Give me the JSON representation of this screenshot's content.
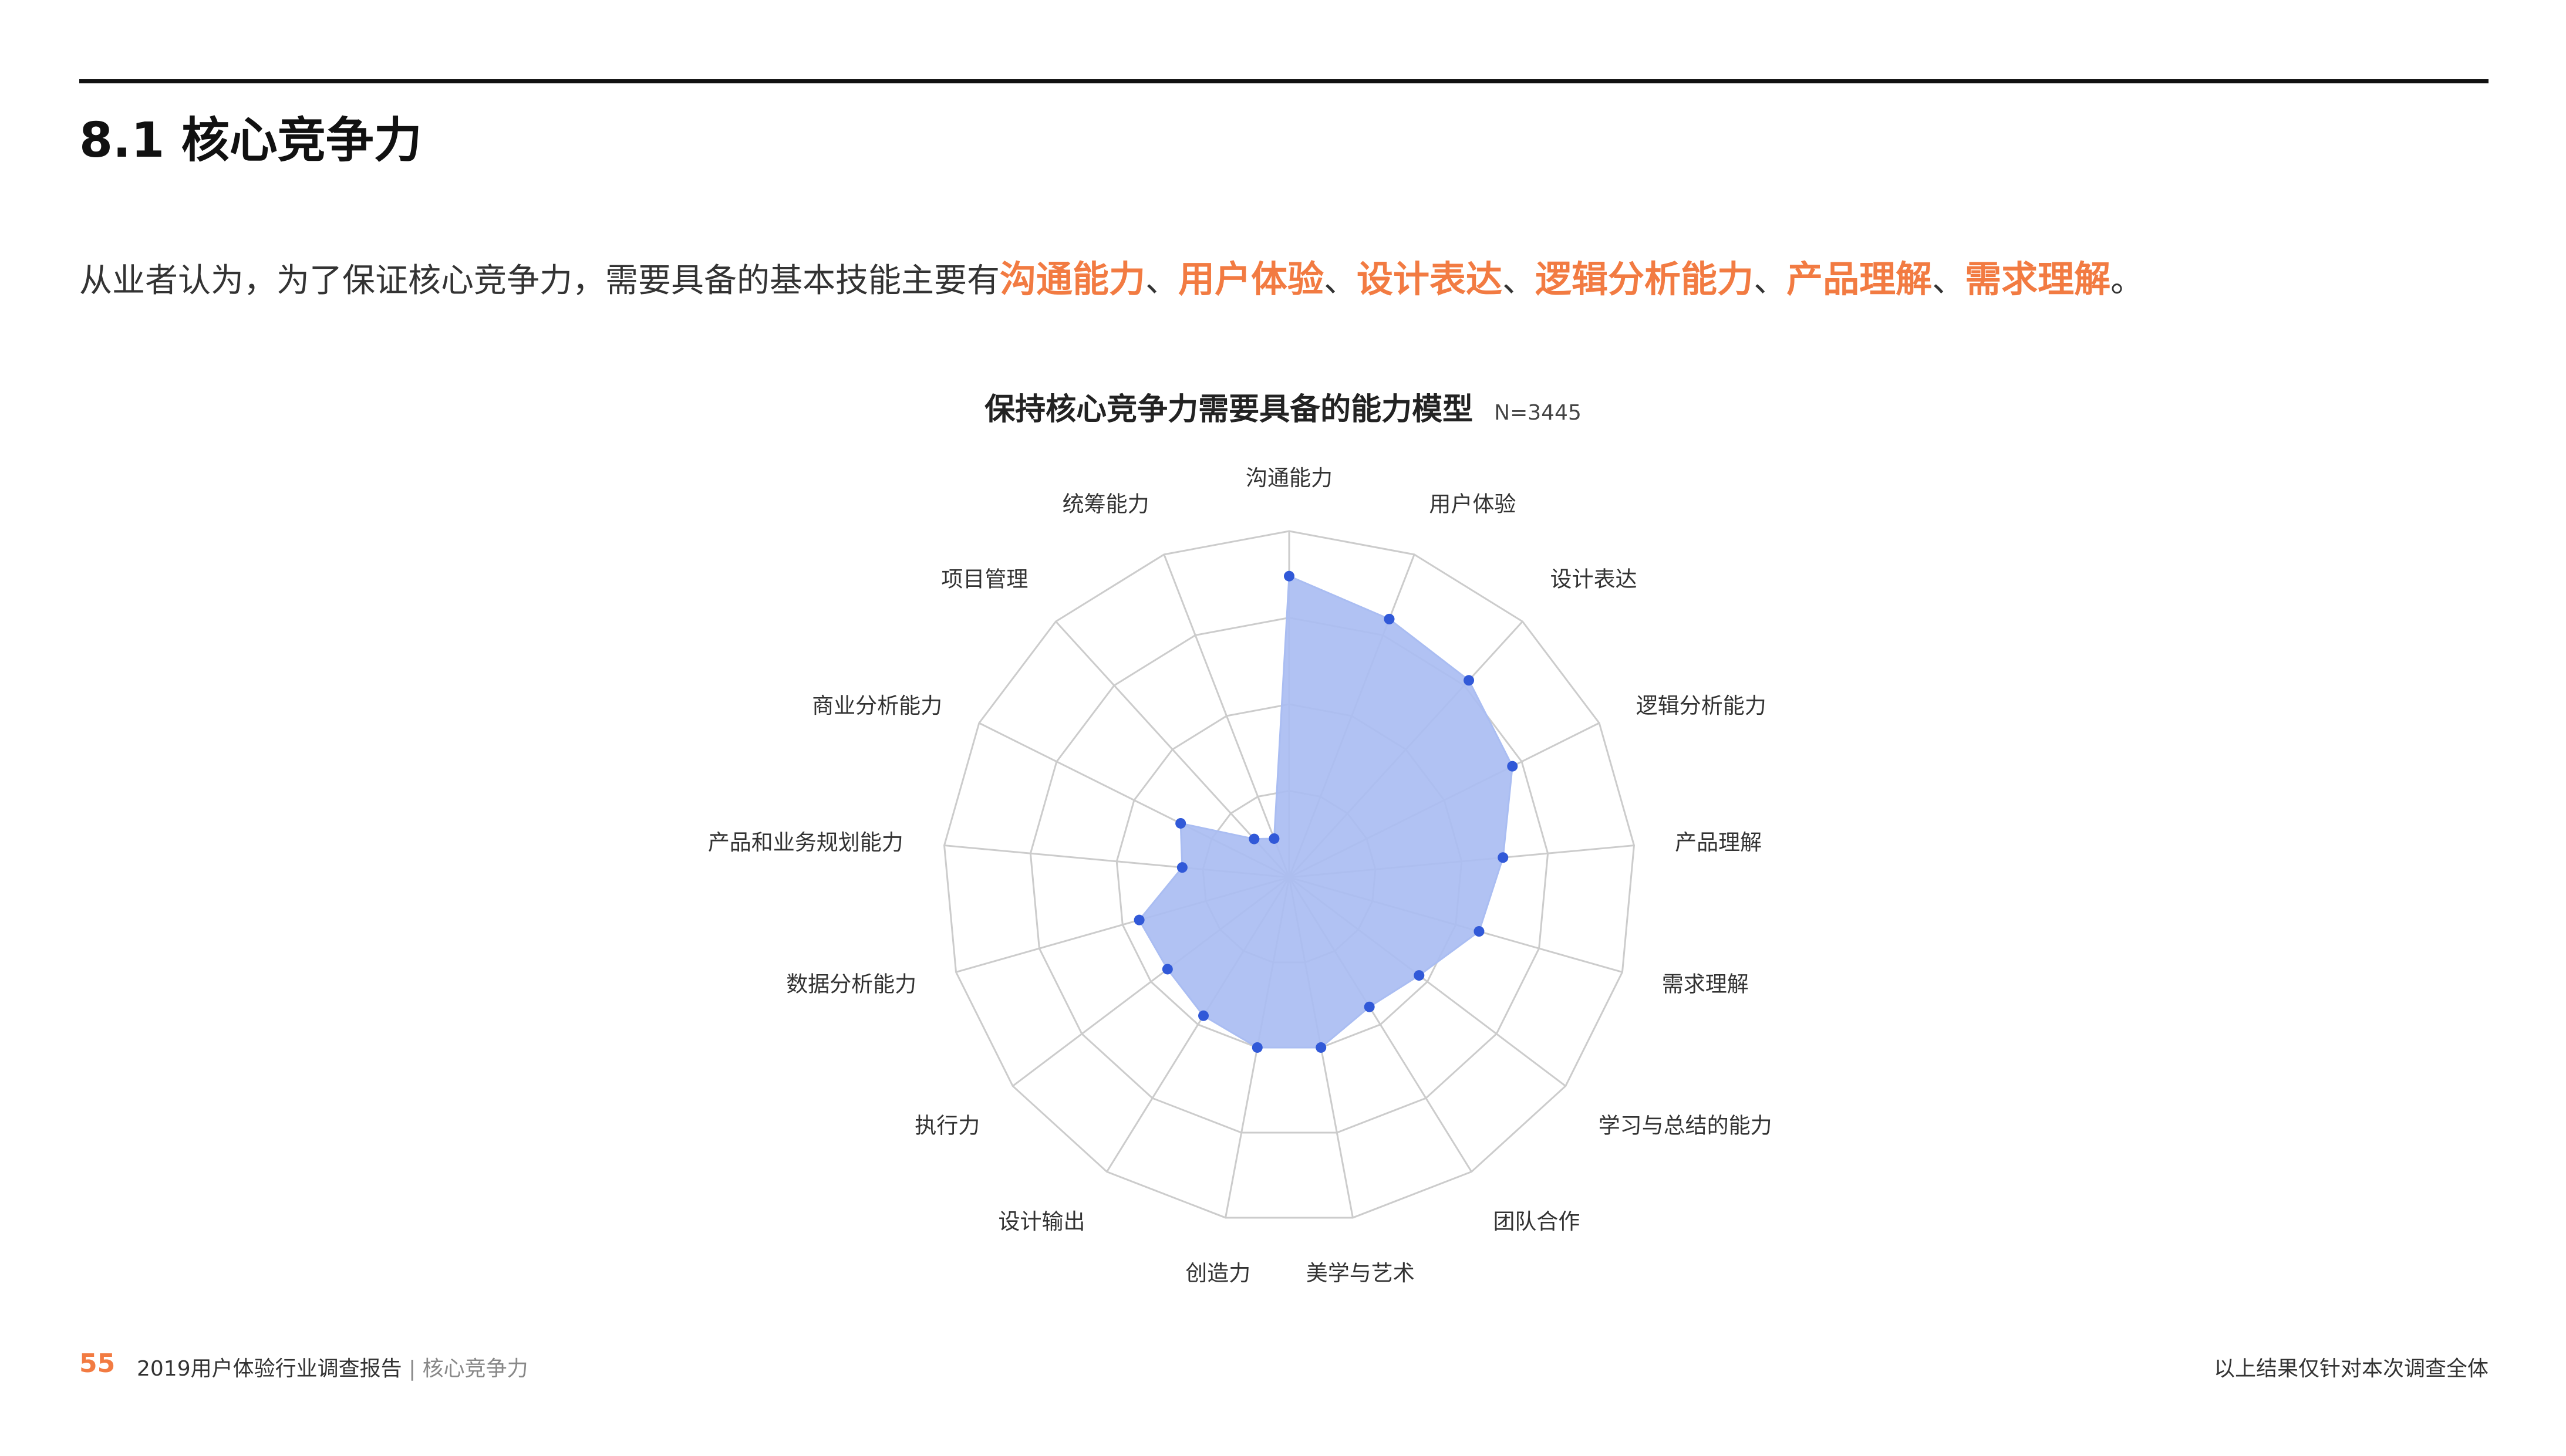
{
  "header": {
    "section_title": "8.1 核心竞争力"
  },
  "summary": {
    "intro": "从业者认为，为了保证核心竞争力，需要具备的基本技能主要有",
    "highlights": [
      "沟通能力",
      "用户体验",
      "设计表达",
      "逻辑分析能力",
      "产品理解",
      "需求理解"
    ],
    "separator": "、",
    "ending": "。"
  },
  "chart_title": "保持核心竞争力需要具备的能力模型",
  "sample_size": "N=3445",
  "colors": {
    "accent": "#f27b42",
    "fill": "#aabdf2",
    "point": "#3159d8",
    "grid": "#cccccc"
  },
  "chart_data": {
    "type": "radar",
    "title": "保持核心竞争力需要具备的能力模型",
    "categories": [
      "沟通能力",
      "用户体验",
      "设计表达",
      "逻辑分析能力",
      "产品理解",
      "需求理解",
      "学习与总结的能力",
      "团队合作",
      "美学与艺术",
      "创造力",
      "设计输出",
      "执行力",
      "数据分析能力",
      "产品和业务规划能力",
      "商业分析能力",
      "项目管理",
      "统筹能力"
    ],
    "series": [
      {
        "values": [
          0.87,
          0.8,
          0.77,
          0.72,
          0.62,
          0.57,
          0.47,
          0.44,
          0.5,
          0.5,
          0.47,
          0.44,
          0.45,
          0.31,
          0.35,
          0.15,
          0.12
        ]
      }
    ],
    "range": [
      0,
      1
    ],
    "rings": 4
  },
  "footer": {
    "page_number": "55",
    "report_title": "2019用户体验行业调查报告",
    "divider": " | ",
    "section": "核心竞争力",
    "note": "以上结果仅针对本次调查全体"
  }
}
